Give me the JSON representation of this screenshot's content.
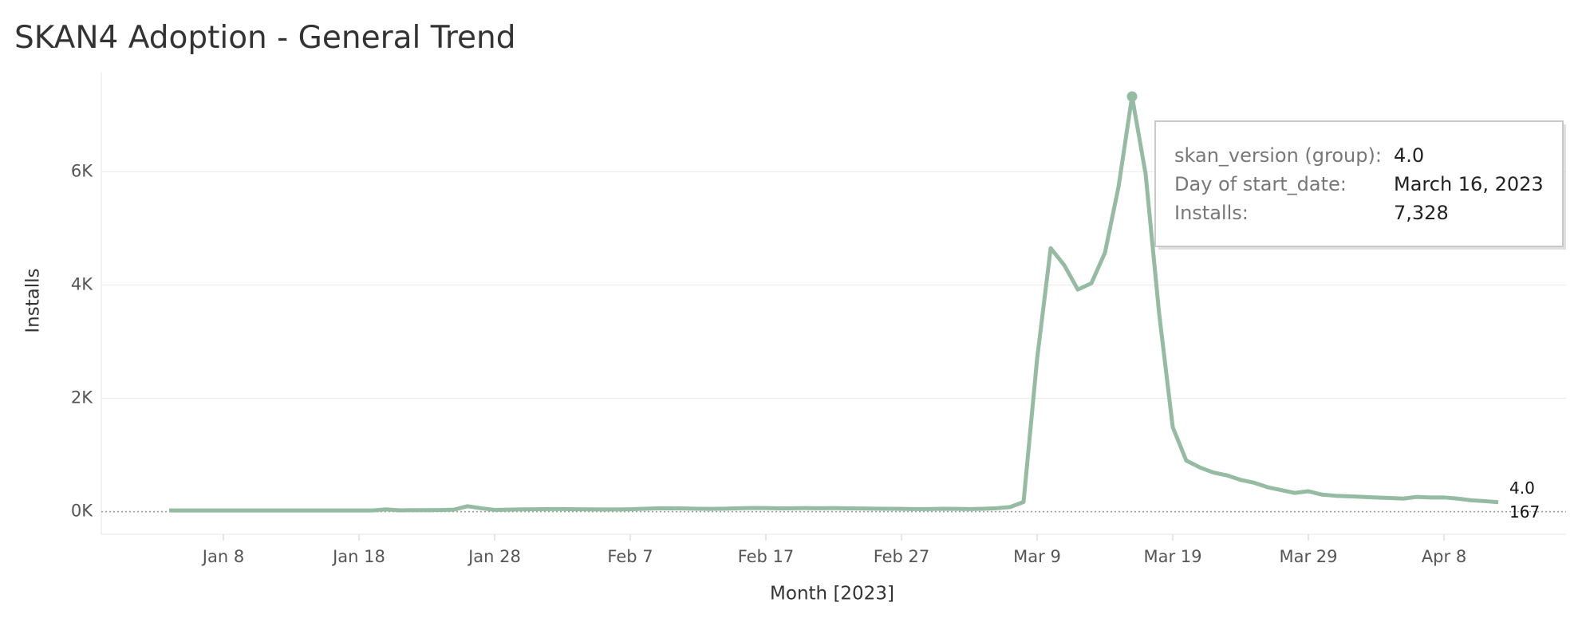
{
  "chart_data": {
    "type": "line",
    "title": "SKAN4 Adoption - General Trend",
    "x_label": "Month [2023]",
    "y_label": "Installs",
    "x": [
      "2023-01-04",
      "2023-01-05",
      "2023-01-06",
      "2023-01-07",
      "2023-01-08",
      "2023-01-09",
      "2023-01-10",
      "2023-01-11",
      "2023-01-12",
      "2023-01-13",
      "2023-01-14",
      "2023-01-15",
      "2023-01-16",
      "2023-01-17",
      "2023-01-18",
      "2023-01-19",
      "2023-01-20",
      "2023-01-21",
      "2023-01-22",
      "2023-01-23",
      "2023-01-24",
      "2023-01-25",
      "2023-01-26",
      "2023-01-27",
      "2023-01-28",
      "2023-01-29",
      "2023-01-30",
      "2023-01-31",
      "2023-02-01",
      "2023-02-02",
      "2023-02-03",
      "2023-02-04",
      "2023-02-05",
      "2023-02-06",
      "2023-02-07",
      "2023-02-08",
      "2023-02-09",
      "2023-02-10",
      "2023-02-11",
      "2023-02-12",
      "2023-02-13",
      "2023-02-14",
      "2023-02-15",
      "2023-02-16",
      "2023-02-17",
      "2023-02-18",
      "2023-02-19",
      "2023-02-20",
      "2023-02-21",
      "2023-02-22",
      "2023-02-23",
      "2023-02-24",
      "2023-02-25",
      "2023-02-26",
      "2023-02-27",
      "2023-02-28",
      "2023-03-01",
      "2023-03-02",
      "2023-03-03",
      "2023-03-04",
      "2023-03-05",
      "2023-03-06",
      "2023-03-07",
      "2023-03-08",
      "2023-03-09",
      "2023-03-10",
      "2023-03-11",
      "2023-03-12",
      "2023-03-13",
      "2023-03-14",
      "2023-03-15",
      "2023-03-16",
      "2023-03-17",
      "2023-03-18",
      "2023-03-19",
      "2023-03-20",
      "2023-03-21",
      "2023-03-22",
      "2023-03-23",
      "2023-03-24",
      "2023-03-25",
      "2023-03-26",
      "2023-03-27",
      "2023-03-28",
      "2023-03-29",
      "2023-03-30",
      "2023-03-31",
      "2023-04-01",
      "2023-04-02",
      "2023-04-03",
      "2023-04-04",
      "2023-04-05",
      "2023-04-06",
      "2023-04-07",
      "2023-04-08",
      "2023-04-09",
      "2023-04-10",
      "2023-04-11",
      "2023-04-12"
    ],
    "series": [
      {
        "name": "4.0",
        "color": "#95bba3",
        "values": [
          20,
          20,
          20,
          20,
          20,
          20,
          20,
          20,
          20,
          20,
          20,
          20,
          20,
          20,
          20,
          20,
          40,
          22,
          25,
          25,
          28,
          35,
          95,
          60,
          30,
          35,
          40,
          42,
          45,
          45,
          42,
          40,
          38,
          38,
          42,
          50,
          58,
          60,
          55,
          50,
          48,
          52,
          60,
          65,
          62,
          58,
          60,
          62,
          60,
          62,
          58,
          55,
          52,
          50,
          48,
          45,
          45,
          50,
          48,
          45,
          50,
          60,
          80,
          170,
          2700,
          4650,
          4350,
          3920,
          4030,
          4570,
          5730,
          7328,
          5960,
          3490,
          1490,
          900,
          780,
          690,
          640,
          560,
          510,
          430,
          380,
          330,
          360,
          300,
          280,
          270,
          260,
          250,
          240,
          230,
          260,
          250,
          250,
          230,
          200,
          185,
          167
        ]
      }
    ],
    "selected_x": "2023-03-16",
    "xlim": [
      "2022-12-30",
      "2023-04-17"
    ],
    "xticks": [
      {
        "value": "2023-01-08",
        "label": "Jan 8"
      },
      {
        "value": "2023-01-18",
        "label": "Jan 18"
      },
      {
        "value": "2023-01-28",
        "label": "Jan 28"
      },
      {
        "value": "2023-02-07",
        "label": "Feb 7"
      },
      {
        "value": "2023-02-17",
        "label": "Feb 17"
      },
      {
        "value": "2023-02-27",
        "label": "Feb 27"
      },
      {
        "value": "2023-03-09",
        "label": "Mar 9"
      },
      {
        "value": "2023-03-19",
        "label": "Mar 19"
      },
      {
        "value": "2023-03-29",
        "label": "Mar 29"
      },
      {
        "value": "2023-04-08",
        "label": "Apr 8"
      }
    ],
    "ylim": [
      -400,
      7750
    ],
    "yticks": [
      {
        "value": 0,
        "label": "0K"
      },
      {
        "value": 2000,
        "label": "2K"
      },
      {
        "value": 4000,
        "label": "4K"
      },
      {
        "value": 6000,
        "label": "6K"
      }
    ],
    "grid": true,
    "tooltip": {
      "rows": [
        {
          "label": "skan_version (group):",
          "value": "4.0"
        },
        {
          "label": "Day of start_date:",
          "value": "March 16, 2023"
        },
        {
          "label": "Installs:",
          "value": "7,328"
        }
      ]
    }
  }
}
